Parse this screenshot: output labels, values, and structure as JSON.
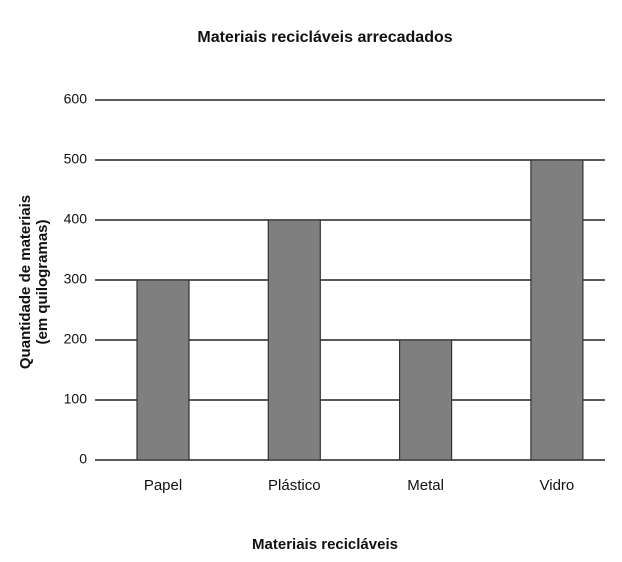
{
  "chart_data": {
    "type": "bar",
    "title": "Materiais recicláveis arrecadados",
    "xlabel": "Materiais recicláveis",
    "ylabel": [
      "Quantidade de materiais",
      "(em quilogramas)"
    ],
    "categories": [
      "Papel",
      "Plástico",
      "Metal",
      "Vidro"
    ],
    "values": [
      300,
      400,
      200,
      500
    ],
    "color": "#7f7f7f",
    "ylim": [
      0,
      600
    ],
    "yticks": [
      0,
      100,
      200,
      300,
      400,
      500,
      600
    ],
    "grid": true
  }
}
